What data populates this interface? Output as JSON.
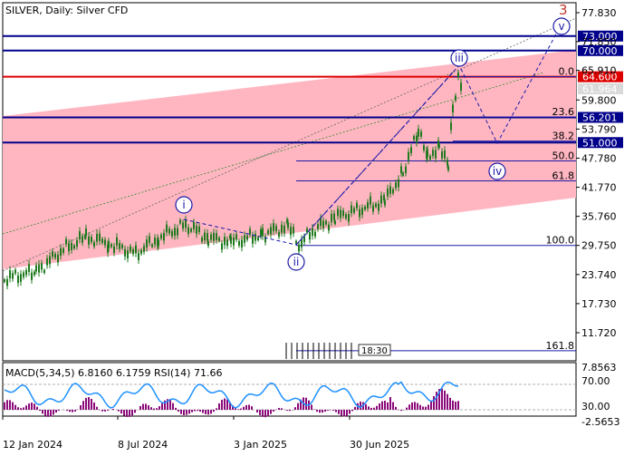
{
  "header": {
    "title": "SILVER, Daily:  Silver CFD"
  },
  "wave_degree_label": "3",
  "colors": {
    "background": "#ffffff",
    "channel_fill": "#ffb6c1",
    "level_blue": "#00008b",
    "resistance_red": "#dd0000",
    "wave_circle": "#1a1aa8",
    "candles": "#1f7a1f",
    "macd_hist": "#8b0a7a",
    "rsi_line": "#1e90ff",
    "fib_line": "#1a1aa8"
  },
  "price_axis": {
    "ticks": [
      "77.830",
      "71.850",
      "65.910",
      "59.800",
      "53.790",
      "47.780",
      "41.770",
      "35.760",
      "29.750",
      "23.740",
      "17.730",
      "11.720"
    ],
    "tick_values": [
      77.83,
      71.85,
      65.91,
      59.8,
      53.79,
      47.78,
      41.77,
      35.76,
      29.75,
      23.74,
      17.73,
      11.72
    ],
    "current_price": "61.964"
  },
  "levels": [
    {
      "name": "resistance-73",
      "value": 73.0,
      "label": "73.000",
      "color": "blue"
    },
    {
      "name": "resistance-70",
      "value": 70.0,
      "label": "70.000",
      "color": "blue"
    },
    {
      "name": "resistance-64-6",
      "value": 64.6,
      "label": "64.600",
      "color": "red"
    },
    {
      "name": "support-56-201",
      "value": 56.201,
      "label": "56.201",
      "color": "blue"
    },
    {
      "name": "support-51",
      "value": 51.0,
      "label": "51.000",
      "color": "blue"
    }
  ],
  "fibonacci": [
    {
      "label": "0.0",
      "value": 64.6
    },
    {
      "label": "23.6",
      "value": 56.3
    },
    {
      "label": "38.2",
      "value": 51.3
    },
    {
      "label": "50.0",
      "value": 47.2
    },
    {
      "label": "61.8",
      "value": 43.1
    },
    {
      "label": "100.0",
      "value": 29.75
    },
    {
      "label": "161.8",
      "value": 8.0
    }
  ],
  "waves": [
    "i",
    "ii",
    "iii",
    "iv",
    "v"
  ],
  "time_label": "18:30",
  "indicator": {
    "label": "MACD(5,34,5) 6.8160 6.1759 RSI(14) 71.66",
    "axis": [
      "7.8563",
      "70.00",
      "30.00",
      "-2.5653"
    ]
  },
  "time_axis": {
    "labels": [
      "12 Jan 2024",
      "8 Jul 2024",
      "3 Jan 2025",
      "30 Jun 2025"
    ]
  }
}
